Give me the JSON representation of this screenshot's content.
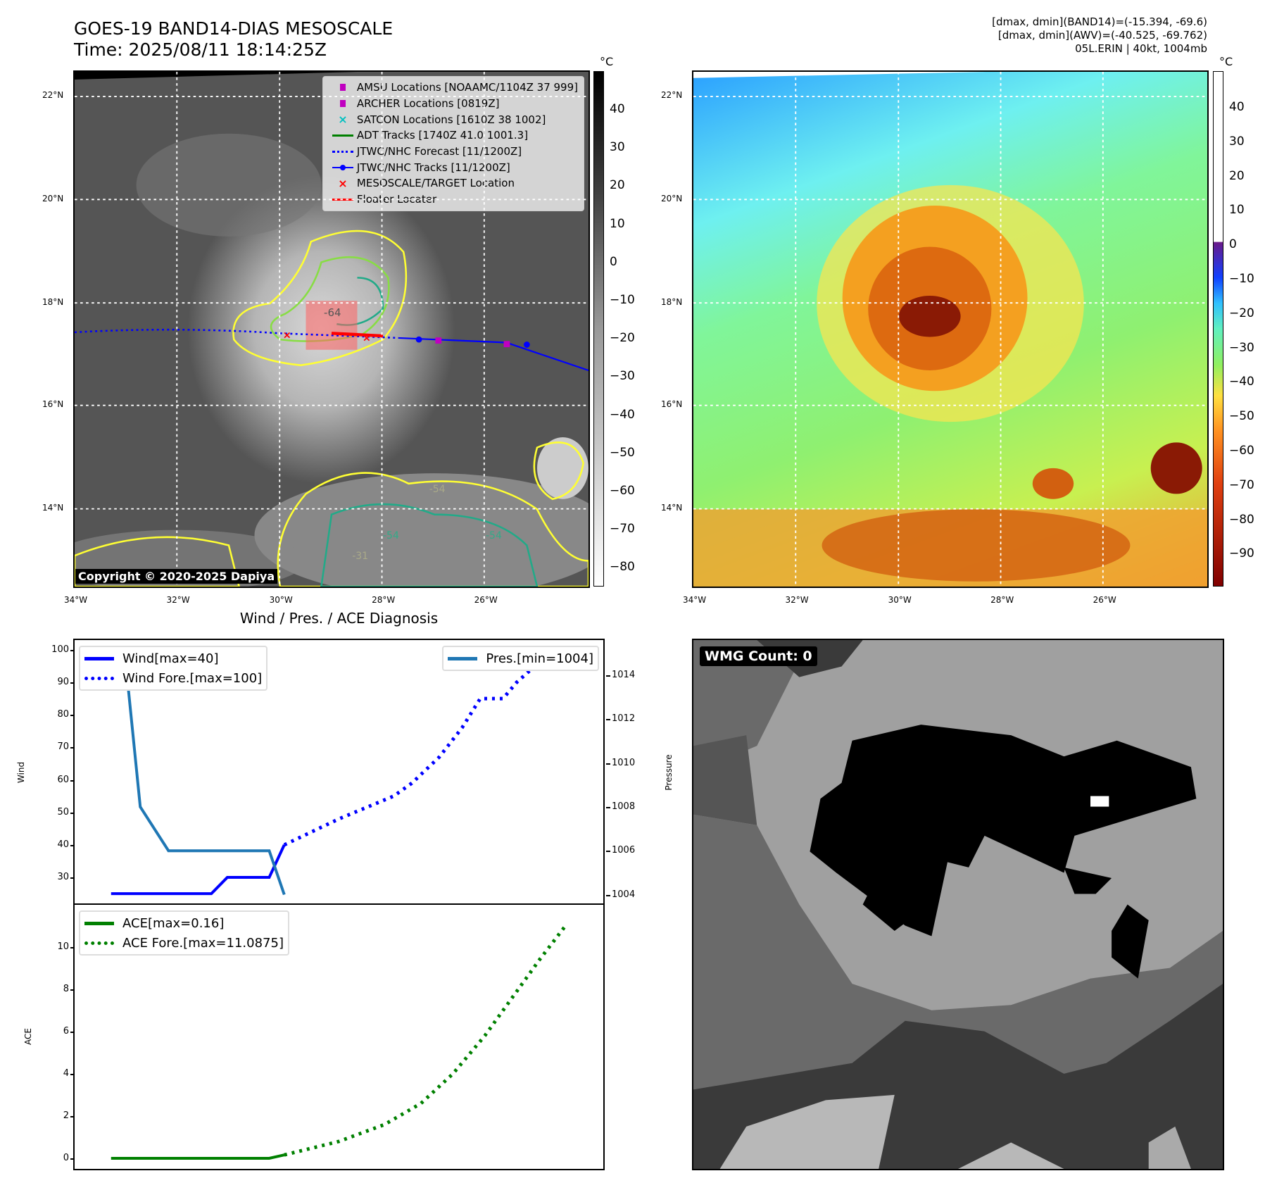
{
  "header": {
    "title": "GOES-19 BAND14-DIAS MESOSCALE",
    "time": "Time: 2025/08/11 18:14:25Z",
    "info": [
      "[dmax, dmin](BAND14)=(-15.394, -69.6)",
      "[dmax, dmin](AWV)=(-40.525, -69.762)",
      "05L.ERIN | 40kt, 1004mb"
    ]
  },
  "map": {
    "lon_ticks": [
      "34°W",
      "32°W",
      "30°W",
      "28°W",
      "26°W"
    ],
    "lat_ticks": [
      "22°N",
      "20°N",
      "18°N",
      "16°N",
      "14°N"
    ],
    "copyright": "Copyright © 2020-2025 Dapiya",
    "contour_labels": [
      "-64",
      "-54",
      "-54",
      "-54",
      "-31"
    ]
  },
  "legend": [
    {
      "label": "AMSU Locations [NOAAMC/1104Z 37 999]",
      "symbol": "square",
      "color": "#c000c0"
    },
    {
      "label": "ARCHER Locations [0819Z]",
      "symbol": "square",
      "color": "#c000c0"
    },
    {
      "label": "SATCON Locations [1610Z 38 1002]",
      "symbol": "x",
      "color": "#00c0c0"
    },
    {
      "label": "ADT Tracks [1740Z 41.0 1001.3]",
      "symbol": "line",
      "color": "#008000"
    },
    {
      "label": "JTWC/NHC Forecast [11/1200Z]",
      "symbol": "dotted",
      "color": "#0000ff"
    },
    {
      "label": "JTWC/NHC Tracks [11/1200Z]",
      "symbol": "line-dot",
      "color": "#0000ff"
    },
    {
      "label": "MESOSCALE/TARGET Location",
      "symbol": "x",
      "color": "#ff0000"
    },
    {
      "label": "Floater Locater",
      "symbol": "line",
      "color": "#ff0000"
    }
  ],
  "colorbar1": {
    "unit": "°C",
    "ticks": [
      "40",
      "30",
      "20",
      "10",
      "0",
      "−10",
      "−20",
      "−30",
      "−40",
      "−50",
      "−60",
      "−70",
      "−80"
    ]
  },
  "colorbar2": {
    "unit": "°C",
    "ticks": [
      "40",
      "30",
      "20",
      "10",
      "0",
      "−10",
      "−20",
      "−30",
      "−40",
      "−50",
      "−60",
      "−70",
      "−80",
      "−90"
    ]
  },
  "chart_data": [
    {
      "type": "line",
      "title": "Wind / Pres. / ACE Diagnosis",
      "ylabel": "Wind",
      "y2label": "Pressure",
      "ylim": [
        22,
        103
      ],
      "y2lim": [
        1003.6,
        1015.6
      ],
      "xlim": [
        -8,
        108
      ],
      "yticks": [
        30,
        40,
        50,
        60,
        70,
        80,
        90,
        100
      ],
      "y2ticks": [
        1004,
        1006,
        1008,
        1010,
        1012,
        1014
      ],
      "series": [
        {
          "name": "Wind[max=40]",
          "color": "#0000ff",
          "style": "solid",
          "axis": "y",
          "points": [
            [
              0,
              25
            ],
            [
              22,
              25
            ],
            [
              25.5,
              30
            ],
            [
              34.7,
              30
            ],
            [
              38,
              40
            ]
          ]
        },
        {
          "name": "Wind Fore.[max=100]",
          "color": "#0000ff",
          "style": "dotted",
          "axis": "y",
          "points": [
            [
              38,
              40
            ],
            [
              50,
              48
            ],
            [
              62,
              55
            ],
            [
              66,
              59
            ],
            [
              72,
              67
            ],
            [
              77,
              76
            ],
            [
              81,
              85
            ],
            [
              86,
              85
            ],
            [
              89,
              90
            ],
            [
              93,
              95
            ],
            [
              98,
              96
            ],
            [
              101,
              100
            ]
          ]
        },
        {
          "name": "Pres.[min=1004]",
          "color": "#1f77b4",
          "style": "solid",
          "axis": "y2",
          "points": [
            [
              0,
              1015
            ],
            [
              3,
              1015
            ],
            [
              6.4,
              1008
            ],
            [
              12.6,
              1006
            ],
            [
              34.7,
              1006
            ],
            [
              38,
              1004
            ]
          ]
        }
      ]
    },
    {
      "type": "line",
      "ylabel": "ACE",
      "ylim": [
        -0.5,
        12
      ],
      "xlim": [
        -8,
        108
      ],
      "yticks": [
        0,
        2,
        4,
        6,
        8,
        10
      ],
      "series": [
        {
          "name": "ACE[max=0.16]",
          "color": "#008000",
          "style": "solid",
          "points": [
            [
              0,
              0
            ],
            [
              34.7,
              0
            ],
            [
              38,
              0.16
            ]
          ]
        },
        {
          "name": "ACE Fore.[max=11.0875]",
          "color": "#008000",
          "style": "dotted",
          "points": [
            [
              38,
              0.16
            ],
            [
              50,
              0.8
            ],
            [
              60,
              1.6
            ],
            [
              68,
              2.6
            ],
            [
              75,
              4
            ],
            [
              82,
              5.8
            ],
            [
              88,
              7.6
            ],
            [
              94,
              9.4
            ],
            [
              100,
              11.09
            ]
          ]
        }
      ]
    }
  ],
  "wmg": {
    "label": "WMG Count: 0"
  }
}
